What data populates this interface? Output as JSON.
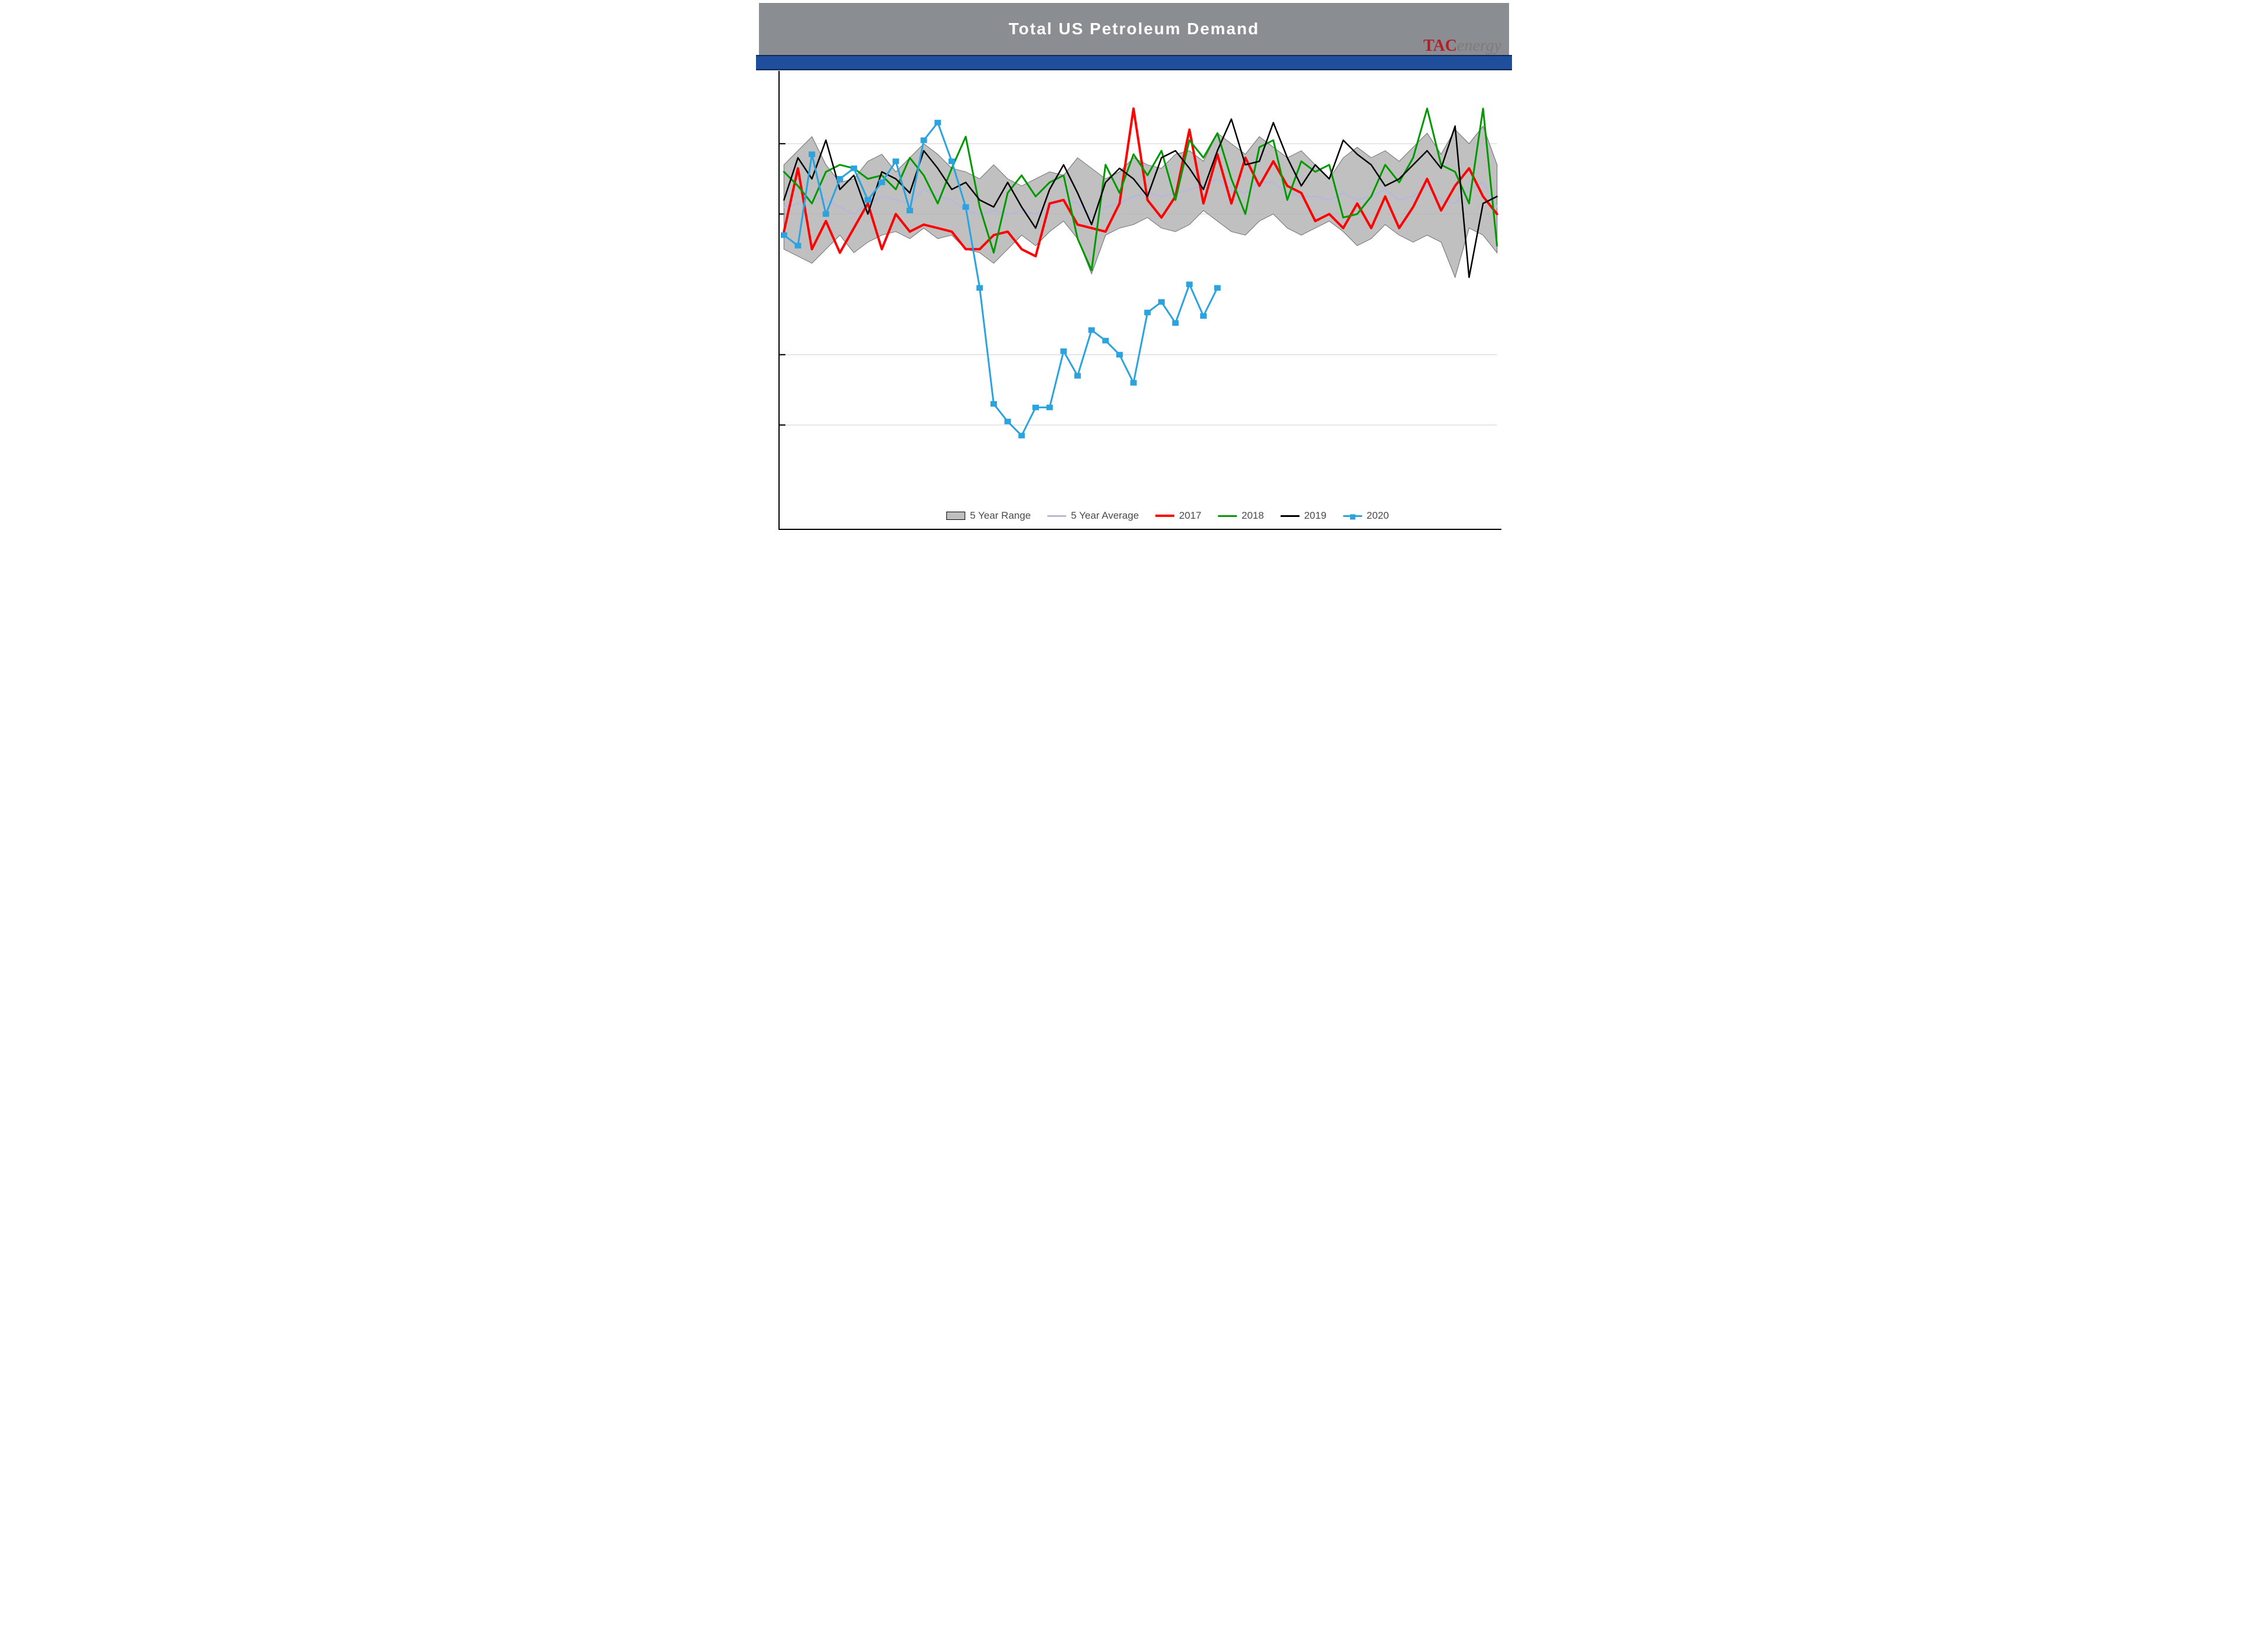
{
  "chart": {
    "type": "line",
    "title": "Total US Petroleum Demand",
    "brand": {
      "prefix": "TAC",
      "suffix": "energy"
    },
    "background_color": "#ffffff",
    "titlebar_color": "#8a8d91",
    "title_font_color": "#ffffff",
    "title_fontsize": 28,
    "bluebar_color": "#1f4e9c",
    "axis_color": "#000000",
    "grid_color": "#d0d0d0",
    "x_count": 52,
    "ylim": [
      12,
      24
    ],
    "gridlines_y": [
      14,
      16,
      20,
      22
    ],
    "range_fill": "#b5b5b5",
    "range_stroke": "#7a7a7a",
    "series": {
      "range_high": [
        21.4,
        21.8,
        22.2,
        21.4,
        20.9,
        21.0,
        21.5,
        21.7,
        21.2,
        21.6,
        22.0,
        21.7,
        21.3,
        21.2,
        21.0,
        21.4,
        21.0,
        20.8,
        21.0,
        21.2,
        21.1,
        21.6,
        21.3,
        21.0,
        21.2,
        21.6,
        21.4,
        21.3,
        21.7,
        21.8,
        21.5,
        22.3,
        22.0,
        21.7,
        22.2,
        21.9,
        21.6,
        21.8,
        21.4,
        21.0,
        21.6,
        21.9,
        21.6,
        21.8,
        21.5,
        21.9,
        22.3,
        21.7,
        22.4,
        22.0,
        22.5,
        21.4
      ],
      "range_low": [
        19.0,
        18.8,
        18.6,
        19.0,
        19.4,
        18.9,
        19.2,
        19.4,
        19.5,
        19.3,
        19.6,
        19.3,
        19.4,
        19.0,
        18.9,
        18.6,
        19.0,
        19.4,
        19.1,
        19.5,
        19.8,
        19.3,
        18.3,
        19.4,
        19.6,
        19.7,
        19.9,
        19.6,
        19.5,
        19.7,
        20.1,
        19.8,
        19.5,
        19.4,
        19.8,
        20.0,
        19.6,
        19.4,
        19.6,
        19.8,
        19.5,
        19.1,
        19.3,
        19.7,
        19.4,
        19.2,
        19.4,
        19.2,
        18.2,
        19.6,
        19.4,
        18.9
      ],
      "avg": [
        20.2,
        20.3,
        20.5,
        20.4,
        20.2,
        20.0,
        20.3,
        20.5,
        20.4,
        20.3,
        20.7,
        20.5,
        20.4,
        20.1,
        20.0,
        20.1,
        20.0,
        20.1,
        20.0,
        20.2,
        20.4,
        20.3,
        19.9,
        20.2,
        20.3,
        20.5,
        20.6,
        20.5,
        20.6,
        20.7,
        20.8,
        21.0,
        20.7,
        20.6,
        20.9,
        20.9,
        20.6,
        20.5,
        20.5,
        20.4,
        20.6,
        20.4,
        20.5,
        20.7,
        20.4,
        20.5,
        20.8,
        20.4,
        20.3,
        20.7,
        20.9,
        20.2
      ],
      "y2017": [
        19.5,
        21.3,
        19.0,
        19.8,
        18.9,
        19.6,
        20.3,
        19.0,
        20.0,
        19.5,
        19.7,
        19.6,
        19.5,
        19.0,
        19.0,
        19.4,
        19.5,
        19.0,
        18.8,
        20.3,
        20.4,
        19.7,
        19.6,
        19.5,
        20.3,
        23.0,
        20.4,
        19.9,
        20.5,
        22.4,
        20.3,
        21.7,
        20.3,
        21.6,
        20.8,
        21.5,
        20.8,
        20.6,
        19.8,
        20.0,
        19.6,
        20.3,
        19.6,
        20.5,
        19.6,
        20.2,
        21.0,
        20.1,
        20.8,
        21.3,
        20.5,
        20.0
      ],
      "y2018": [
        21.2,
        20.8,
        20.3,
        21.2,
        21.4,
        21.3,
        21.0,
        21.1,
        20.7,
        21.6,
        21.1,
        20.3,
        21.3,
        22.2,
        20.2,
        18.9,
        20.6,
        21.1,
        20.5,
        20.9,
        21.1,
        19.3,
        18.4,
        21.4,
        20.6,
        21.7,
        21.1,
        21.8,
        20.4,
        22.1,
        21.6,
        22.3,
        21.0,
        20.0,
        21.9,
        22.1,
        20.4,
        21.5,
        21.2,
        21.4,
        19.9,
        20.0,
        20.5,
        21.4,
        20.9,
        21.6,
        23.0,
        21.4,
        21.2,
        20.3,
        23.0,
        19.1
      ],
      "y2019": [
        20.4,
        21.6,
        21.0,
        22.1,
        20.7,
        21.1,
        20.0,
        21.2,
        21.0,
        20.6,
        21.8,
        21.3,
        20.7,
        20.9,
        20.4,
        20.2,
        20.9,
        20.2,
        19.6,
        20.7,
        21.4,
        20.6,
        19.7,
        20.9,
        21.3,
        21.0,
        20.5,
        21.6,
        21.8,
        21.3,
        20.7,
        21.8,
        22.7,
        21.4,
        21.5,
        22.6,
        21.6,
        20.8,
        21.4,
        21.0,
        22.1,
        21.7,
        21.4,
        20.8,
        21.0,
        21.4,
        21.8,
        21.3,
        22.5,
        18.2,
        20.3,
        20.5
      ],
      "y2020": [
        19.4,
        19.1,
        21.7,
        20.0,
        21.0,
        21.3,
        20.4,
        20.9,
        21.5,
        20.1,
        22.1,
        22.6,
        21.5,
        20.2,
        17.9,
        14.6,
        14.1,
        13.7,
        14.5,
        14.5,
        16.1,
        15.4,
        16.7,
        16.4,
        16.0,
        15.2,
        17.2,
        17.5,
        16.9,
        18.0,
        17.1,
        17.9
      ]
    },
    "colors": {
      "avg": "#b8b9d9",
      "y2017": "#ff0000",
      "y2018": "#009a00",
      "y2019": "#000000",
      "y2020": "#2aa3df"
    },
    "line_widths": {
      "avg": 3,
      "y2017": 4,
      "y2018": 3,
      "y2019": 2.5,
      "y2020": 3
    },
    "legend": {
      "range": "5 Year Range",
      "avg": "5 Year Average",
      "y2017": "2017",
      "y2018": "2018",
      "y2019": "2019",
      "y2020": "2020"
    }
  }
}
